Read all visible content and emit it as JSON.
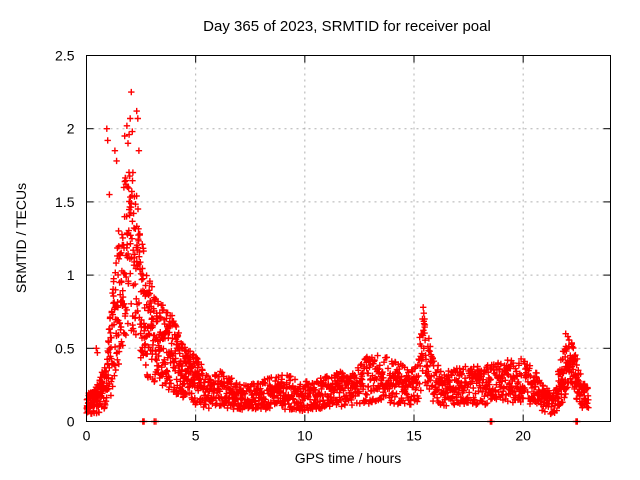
{
  "chart_data": {
    "type": "scatter",
    "title": "Day 365 of 2023, SRMTID for receiver poal",
    "xlabel": "GPS time / hours",
    "ylabel": "SRMTID / TECUs",
    "xlim": [
      0,
      24
    ],
    "ylim": [
      0,
      2.5
    ],
    "xticks": [
      0,
      5,
      10,
      15,
      20
    ],
    "yticks": [
      0,
      0.5,
      1,
      1.5,
      2,
      2.5
    ],
    "grid": true,
    "legend": "none",
    "marker": "plus",
    "marker_color": "#ff0000",
    "data_x_end_hours": 23.0,
    "peak": {
      "x": 2.05,
      "y": 2.25
    },
    "spike_secondary": {
      "x": 15.45,
      "y": 0.78
    },
    "profile_mean_halfrange": [
      [
        0.0,
        0.12,
        0.07
      ],
      [
        0.3,
        0.13,
        0.08
      ],
      [
        0.6,
        0.17,
        0.11
      ],
      [
        0.9,
        0.27,
        0.17
      ],
      [
        1.1,
        0.45,
        0.3
      ],
      [
        1.4,
        0.8,
        0.45
      ],
      [
        1.7,
        1.05,
        0.55
      ],
      [
        1.95,
        1.25,
        0.62
      ],
      [
        2.15,
        1.15,
        0.6
      ],
      [
        2.35,
        1.0,
        0.55
      ],
      [
        2.6,
        0.78,
        0.42
      ],
      [
        2.9,
        0.62,
        0.35
      ],
      [
        3.2,
        0.55,
        0.3
      ],
      [
        3.6,
        0.5,
        0.28
      ],
      [
        4.0,
        0.45,
        0.26
      ],
      [
        4.4,
        0.36,
        0.2
      ],
      [
        4.8,
        0.3,
        0.18
      ],
      [
        5.2,
        0.26,
        0.15
      ],
      [
        5.6,
        0.2,
        0.12
      ],
      [
        6.2,
        0.22,
        0.13
      ],
      [
        6.8,
        0.18,
        0.1
      ],
      [
        7.4,
        0.16,
        0.09
      ],
      [
        8.0,
        0.18,
        0.1
      ],
      [
        8.6,
        0.2,
        0.11
      ],
      [
        9.2,
        0.2,
        0.12
      ],
      [
        9.8,
        0.17,
        0.1
      ],
      [
        10.4,
        0.18,
        0.1
      ],
      [
        11.0,
        0.2,
        0.11
      ],
      [
        11.6,
        0.22,
        0.12
      ],
      [
        12.2,
        0.22,
        0.12
      ],
      [
        12.8,
        0.28,
        0.16
      ],
      [
        13.4,
        0.3,
        0.17
      ],
      [
        14.0,
        0.28,
        0.16
      ],
      [
        14.6,
        0.24,
        0.13
      ],
      [
        15.1,
        0.26,
        0.15
      ],
      [
        15.45,
        0.52,
        0.27
      ],
      [
        15.65,
        0.42,
        0.22
      ],
      [
        15.9,
        0.28,
        0.15
      ],
      [
        16.3,
        0.22,
        0.12
      ],
      [
        16.9,
        0.24,
        0.13
      ],
      [
        17.5,
        0.26,
        0.14
      ],
      [
        18.1,
        0.24,
        0.13
      ],
      [
        18.7,
        0.26,
        0.14
      ],
      [
        19.3,
        0.28,
        0.15
      ],
      [
        19.9,
        0.28,
        0.15
      ],
      [
        20.5,
        0.24,
        0.13
      ],
      [
        21.0,
        0.16,
        0.1
      ],
      [
        21.35,
        0.12,
        0.08
      ],
      [
        21.8,
        0.3,
        0.18
      ],
      [
        22.15,
        0.42,
        0.17
      ],
      [
        22.45,
        0.3,
        0.15
      ],
      [
        22.75,
        0.18,
        0.1
      ],
      [
        23.0,
        0.14,
        0.08
      ]
    ],
    "outlier_points": [
      [
        0.45,
        0.5
      ],
      [
        0.5,
        0.47
      ],
      [
        0.93,
        2.0
      ],
      [
        0.97,
        1.92
      ],
      [
        1.05,
        1.55
      ],
      [
        1.3,
        1.85
      ],
      [
        1.38,
        1.78
      ],
      [
        1.75,
        1.95
      ],
      [
        1.85,
        2.02
      ],
      [
        1.9,
        1.9
      ],
      [
        1.95,
        1.96
      ],
      [
        2.0,
        2.07
      ],
      [
        2.05,
        2.25
      ],
      [
        2.1,
        1.98
      ],
      [
        2.3,
        2.12
      ],
      [
        2.35,
        2.07
      ],
      [
        2.4,
        1.85
      ],
      [
        15.42,
        0.78
      ],
      [
        15.45,
        0.74
      ],
      [
        15.48,
        0.7
      ],
      [
        15.5,
        0.66
      ],
      [
        21.95,
        0.6
      ],
      [
        22.05,
        0.58
      ]
    ],
    "zero_points": [
      2.58,
      2.6,
      2.62,
      2.64,
      3.1,
      3.18,
      18.5,
      18.56,
      22.42,
      22.48
    ],
    "sample_passes": [
      {
        "from": 0.0,
        "to": 23.0,
        "step": 0.012
      },
      {
        "from": 0.0,
        "to": 5.2,
        "step": 0.02
      },
      {
        "from": 21.6,
        "to": 22.6,
        "step": 0.025
      }
    ],
    "random_seed": 7
  },
  "colors": {
    "background": "#ffffff",
    "plot_border": "#000000",
    "grid": "#b0b0b0",
    "marker": "#ff0000",
    "text": "#000000"
  }
}
